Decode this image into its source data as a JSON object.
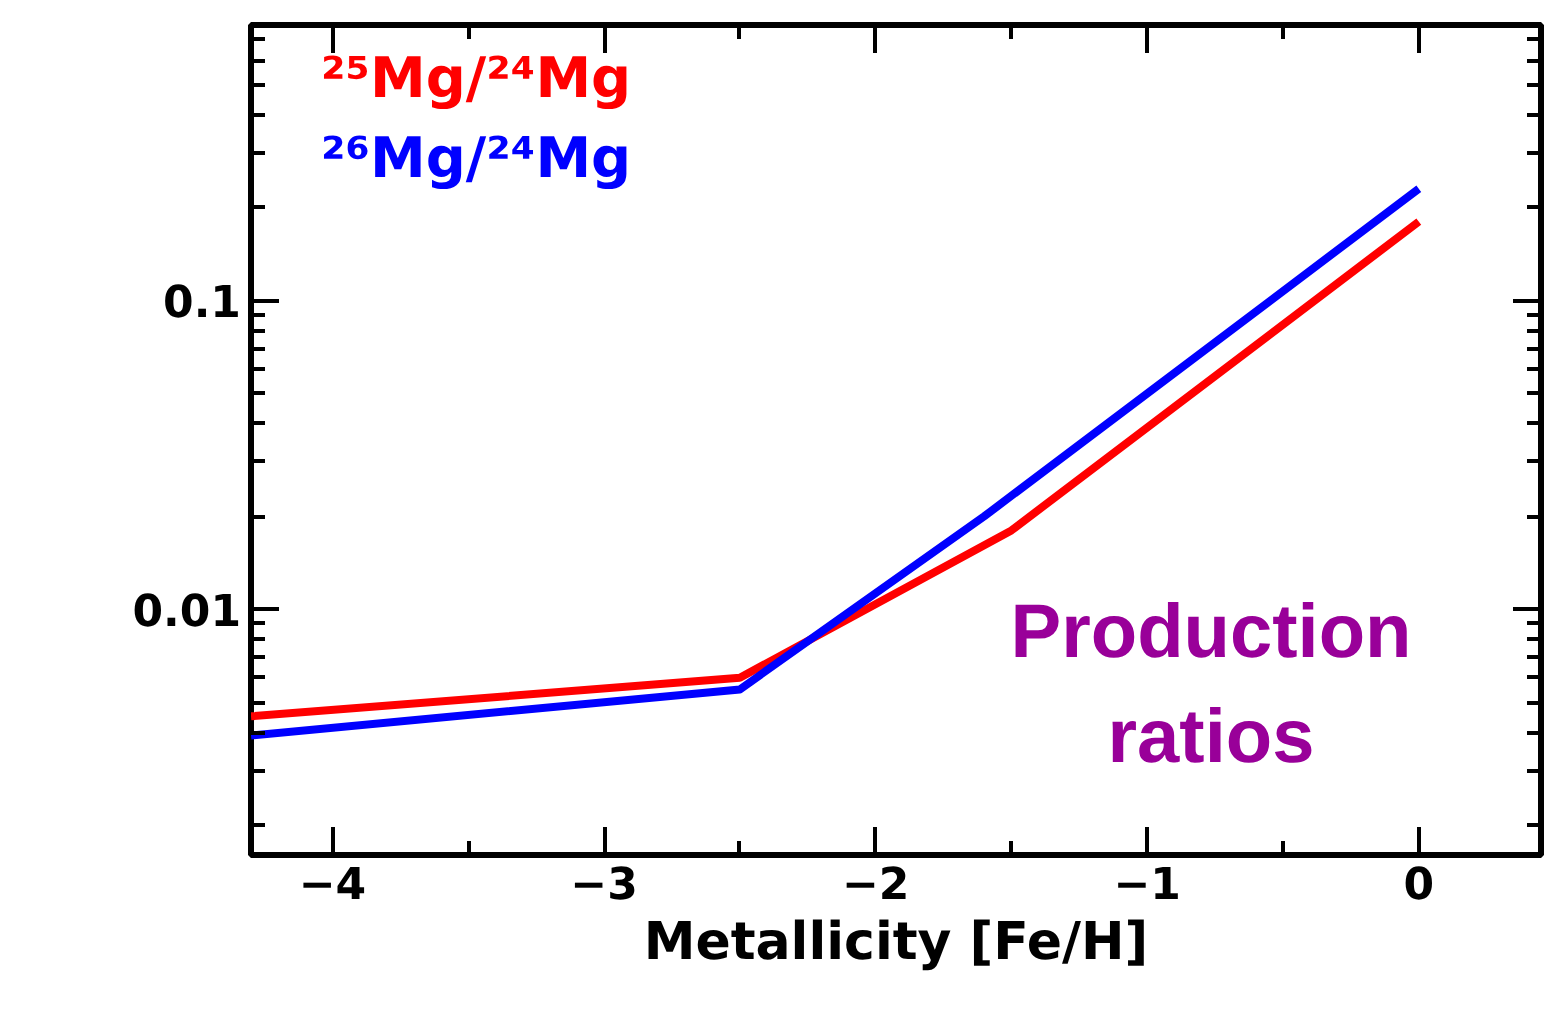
{
  "chart_data": {
    "type": "line",
    "xlabel": "Metallicity [Fe/H]",
    "log": "y",
    "legend": "top left",
    "grid": false,
    "marker": "none",
    "line_style": "solid",
    "xlim": [
      -4.3,
      0.45
    ],
    "ylim": [
      0.0016,
      0.78
    ],
    "xticks": [
      -4,
      -3,
      -2,
      -1,
      0,
      {
        "value": -3.5,
        "label": null
      },
      {
        "value": -2.5,
        "label": null
      },
      {
        "value": -1.5,
        "label": null
      },
      {
        "value": -0.5,
        "label": null
      }
    ],
    "yticks": [
      {
        "value": 0.01,
        "label": "0.01"
      },
      {
        "value": 0.1,
        "label": "0.1"
      },
      {
        "value": 0.002,
        "label": null
      },
      {
        "value": 0.003,
        "label": null
      },
      {
        "value": 0.004,
        "label": null
      },
      {
        "value": 0.005,
        "label": null
      },
      {
        "value": 0.006,
        "label": null
      },
      {
        "value": 0.007,
        "label": null
      },
      {
        "value": 0.008,
        "label": null
      },
      {
        "value": 0.009,
        "label": null
      },
      {
        "value": 0.02,
        "label": null
      },
      {
        "value": 0.03,
        "label": null
      },
      {
        "value": 0.04,
        "label": null
      },
      {
        "value": 0.05,
        "label": null
      },
      {
        "value": 0.06,
        "label": null
      },
      {
        "value": 0.07,
        "label": null
      },
      {
        "value": 0.08,
        "label": null
      },
      {
        "value": 0.09,
        "label": null
      },
      {
        "value": 0.2,
        "label": null
      },
      {
        "value": 0.3,
        "label": null
      },
      {
        "value": 0.4,
        "label": null
      },
      {
        "value": 0.5,
        "label": null
      },
      {
        "value": 0.6,
        "label": null
      },
      {
        "value": 0.7,
        "label": null
      }
    ],
    "series": [
      {
        "name": "²⁵Mg/²⁴Mg",
        "color": "#ff0000",
        "x": [
          -4.3,
          -2.5,
          -1.5,
          0
        ],
        "values": [
          0.0045,
          0.006,
          0.018,
          0.18
        ]
      },
      {
        "name": "²⁶Mg/²⁴Mg",
        "color": "#0000ff",
        "x": [
          -4.3,
          -2.5,
          -1.6,
          0
        ],
        "values": [
          0.0039,
          0.0055,
          0.02,
          0.23
        ]
      }
    ],
    "annotations": [
      "Production\nratios"
    ]
  }
}
